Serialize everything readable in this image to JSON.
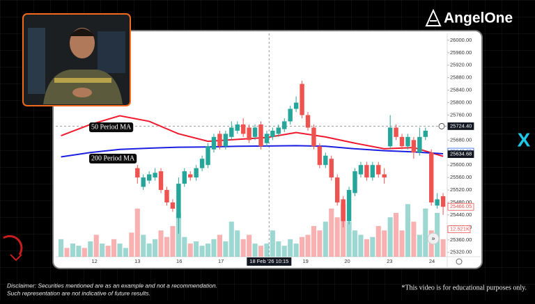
{
  "brand": "AngelOne",
  "side_mark": "X",
  "disclaimer": [
    "Disclaimer: Securities mentioned are as an example and not a recommendation.",
    "Such representation are not  indicative of future results."
  ],
  "footnote": "*This video is for educational purposes only.",
  "chart_data": {
    "type": "candlestick",
    "xlim": [
      -13.9,
      52.7
    ],
    "xticks": [
      {
        "value": -7.3,
        "label": "12"
      },
      {
        "value": 0,
        "label": "13"
      },
      {
        "value": 7.1,
        "label": "16"
      },
      {
        "value": 14.2,
        "label": "17"
      },
      {
        "value": 22.4,
        "label": "18 Feb '26   10:15"
      },
      {
        "value": 28.6,
        "label": "19"
      },
      {
        "value": 35.7,
        "label": "20"
      },
      {
        "value": 42.9,
        "label": "23"
      },
      {
        "value": 50.1,
        "label": "24"
      }
    ],
    "ylim": [
      25306,
      26022
    ],
    "yticks": [
      {
        "value": 25320,
        "label": "25320.00"
      },
      {
        "value": 25360,
        "label": "25360.00"
      },
      {
        "value": 25400,
        "label": "25400.00"
      },
      {
        "value": 25440,
        "label": "25440.00"
      },
      {
        "value": 25480,
        "label": "25480.00"
      },
      {
        "value": 25520,
        "label": "25520.00"
      },
      {
        "value": 25560,
        "label": "25560.00"
      },
      {
        "value": 25600,
        "label": "25600.00"
      },
      {
        "value": 25640,
        "label": "25640.00"
      },
      {
        "value": 25680,
        "label": "25680.00"
      },
      {
        "value": 25720,
        "label": "25720.00"
      },
      {
        "value": 25760,
        "label": "25760.00"
      },
      {
        "value": 25800,
        "label": "25800.00"
      },
      {
        "value": 25840,
        "label": "25840.00"
      },
      {
        "value": 25880,
        "label": "25880.00"
      },
      {
        "value": 25920,
        "label": "25920.00"
      },
      {
        "value": 25960,
        "label": "25960.00"
      },
      {
        "value": 26000,
        "label": "26000.00"
      }
    ],
    "up_color": "#26a69a",
    "down_color": "#ef5350",
    "candles": [
      {
        "open": 25590,
        "high": 25600,
        "low": 25540,
        "close": 25560
      },
      {
        "open": 25530,
        "high": 25570,
        "low": 25520,
        "close": 25560
      },
      {
        "open": 25550,
        "high": 25580,
        "low": 25540,
        "close": 25570
      },
      {
        "open": 25560,
        "high": 25590,
        "low": 25550,
        "close": 25575
      },
      {
        "open": 25580,
        "high": 25590,
        "low": 25510,
        "close": 25520
      },
      {
        "open": 25520,
        "high": 25530,
        "low": 25470,
        "close": 25480
      },
      {
        "open": 25480,
        "high": 25490,
        "low": 25450,
        "close": 25460
      },
      {
        "open": 25430,
        "high": 25560,
        "low": 25380,
        "close": 25540
      },
      {
        "open": 25540,
        "high": 25590,
        "low": 25530,
        "close": 25580
      },
      {
        "open": 25570,
        "high": 25580,
        "low": 25550,
        "close": 25560
      },
      {
        "open": 25560,
        "high": 25600,
        "low": 25550,
        "close": 25590
      },
      {
        "open": 25590,
        "high": 25630,
        "low": 25580,
        "close": 25620
      },
      {
        "open": 25600,
        "high": 25670,
        "low": 25590,
        "close": 25660
      },
      {
        "open": 25650,
        "high": 25700,
        "low": 25640,
        "close": 25690
      },
      {
        "open": 25700,
        "high": 25710,
        "low": 25650,
        "close": 25660
      },
      {
        "open": 25660,
        "high": 25710,
        "low": 25650,
        "close": 25700
      },
      {
        "open": 25690,
        "high": 25740,
        "low": 25680,
        "close": 25720
      },
      {
        "open": 25710,
        "high": 25740,
        "low": 25700,
        "close": 25730
      },
      {
        "open": 25730,
        "high": 25750,
        "low": 25690,
        "close": 25700
      },
      {
        "open": 25720,
        "high": 25730,
        "low": 25670,
        "close": 25680
      },
      {
        "open": 25690,
        "high": 25730,
        "low": 25680,
        "close": 25720
      },
      {
        "open": 25730,
        "high": 25740,
        "low": 25650,
        "close": 25660
      },
      {
        "open": 25670,
        "high": 25710,
        "low": 25660,
        "close": 25700
      },
      {
        "open": 25690,
        "high": 25720,
        "low": 25680,
        "close": 25710
      },
      {
        "open": 25700,
        "high": 25730,
        "low": 25690,
        "close": 25720
      },
      {
        "open": 25715,
        "high": 25750,
        "low": 25705,
        "close": 25740
      },
      {
        "open": 25740,
        "high": 25790,
        "low": 25730,
        "close": 25780
      },
      {
        "open": 25780,
        "high": 25820,
        "low": 25770,
        "close": 25800
      },
      {
        "open": 25860,
        "high": 25870,
        "low": 25750,
        "close": 25760
      },
      {
        "open": 25760,
        "high": 25770,
        "low": 25710,
        "close": 25720
      },
      {
        "open": 25720,
        "high": 25730,
        "low": 25650,
        "close": 25660
      },
      {
        "open": 25660,
        "high": 25670,
        "low": 25590,
        "close": 25600
      },
      {
        "open": 25600,
        "high": 25640,
        "low": 25590,
        "close": 25630
      },
      {
        "open": 25620,
        "high": 25630,
        "low": 25550,
        "close": 25560
      },
      {
        "open": 25560,
        "high": 25570,
        "low": 25470,
        "close": 25480
      },
      {
        "open": 25490,
        "high": 25500,
        "low": 25400,
        "close": 25420
      },
      {
        "open": 25420,
        "high": 25530,
        "low": 25410,
        "close": 25520
      },
      {
        "open": 25510,
        "high": 25590,
        "low": 25500,
        "close": 25580
      },
      {
        "open": 25570,
        "high": 25610,
        "low": 25560,
        "close": 25600
      },
      {
        "open": 25600,
        "high": 25610,
        "low": 25550,
        "close": 25560
      },
      {
        "open": 25560,
        "high": 25610,
        "low": 25550,
        "close": 25600
      },
      {
        "open": 25600,
        "high": 25610,
        "low": 25560,
        "close": 25570
      },
      {
        "open": 25570,
        "high": 25590,
        "low": 25540,
        "close": 25560
      },
      {
        "open": 25660,
        "high": 25760,
        "low": 25650,
        "close": 25720
      },
      {
        "open": 25720,
        "high": 25730,
        "low": 25680,
        "close": 25690
      },
      {
        "open": 25690,
        "high": 25700,
        "low": 25650,
        "close": 25660
      },
      {
        "open": 25660,
        "high": 25700,
        "low": 25650,
        "close": 25690
      },
      {
        "open": 25680,
        "high": 25690,
        "low": 25620,
        "close": 25640
      },
      {
        "open": 25640,
        "high": 25720,
        "low": 25630,
        "close": 25690
      },
      {
        "open": 25690,
        "high": 25720,
        "low": 25680,
        "close": 25710
      },
      {
        "open": 25640,
        "high": 25650,
        "low": 25470,
        "close": 25480
      },
      {
        "open": 25470,
        "high": 25510,
        "low": 25460,
        "close": 25490
      },
      {
        "open": 25500,
        "high": 25510,
        "low": 25440,
        "close": 25466.05
      }
    ],
    "volume": {
      "vlim": [
        0,
        27
      ],
      "x": [
        -13,
        -12,
        -11,
        -10,
        -9,
        -8,
        -7,
        -6,
        -5,
        -4,
        -3,
        -2,
        -1,
        0,
        1,
        2,
        3,
        4,
        5,
        6,
        7,
        8,
        9,
        10,
        11,
        12,
        13,
        14,
        15,
        16,
        17,
        18,
        19,
        20,
        21,
        22,
        23,
        24,
        25,
        26,
        27,
        28,
        29,
        30,
        31,
        32,
        33,
        34,
        35,
        36,
        37,
        38,
        39,
        40,
        41,
        42,
        43,
        44,
        45,
        46,
        47,
        48,
        49,
        50,
        51,
        52
      ],
      "values": [
        8,
        4,
        6,
        5,
        4,
        7,
        10,
        6,
        5,
        8,
        6,
        4,
        11,
        22,
        10,
        6,
        8,
        12,
        9,
        14,
        20,
        9,
        6,
        7,
        5,
        6,
        8,
        10,
        7,
        16,
        12,
        8,
        10,
        6,
        5,
        6,
        12,
        7,
        5,
        8,
        6,
        9,
        10,
        14,
        12,
        16,
        22,
        18,
        24,
        16,
        12,
        10,
        8,
        9,
        14,
        12,
        18,
        20,
        12,
        24,
        16,
        10,
        22,
        12,
        20,
        8
      ],
      "up": [
        true,
        false,
        true,
        true,
        false,
        true,
        false,
        true,
        false,
        false,
        true,
        true,
        false,
        false,
        true,
        true,
        true,
        false,
        false,
        false,
        true,
        true,
        false,
        true,
        true,
        true,
        true,
        false,
        true,
        true,
        true,
        false,
        false,
        true,
        false,
        true,
        true,
        true,
        true,
        true,
        true,
        false,
        false,
        false,
        false,
        true,
        false,
        false,
        false,
        true,
        true,
        true,
        false,
        true,
        false,
        false,
        true,
        false,
        false,
        true,
        false,
        true,
        true,
        false,
        true,
        false
      ]
    },
    "series": [
      {
        "name": "50 Period MA",
        "color": "#f0182c",
        "x": [
          -13,
          -8,
          -3,
          2,
          7,
          12,
          17,
          22,
          27,
          32,
          37,
          42,
          47,
          52
        ],
        "values": [
          25694,
          25730,
          25758,
          25740,
          25700,
          25676,
          25682,
          25688,
          25704,
          25690,
          25670,
          25652,
          25656,
          25628
        ]
      },
      {
        "name": "200 Period MA",
        "color": "#1a1ee0",
        "x": [
          -13,
          -8,
          -3,
          2,
          7,
          12,
          17,
          22,
          27,
          32,
          37,
          42,
          47,
          52
        ],
        "values": [
          25626,
          25640,
          25650,
          25654,
          25657,
          25658,
          25660,
          25661,
          25662,
          25660,
          25652,
          25646,
          25642,
          25636
        ]
      }
    ],
    "crosshair": {
      "y": 25724.4
    },
    "price_labels": [
      {
        "value": 25724.4,
        "label": "25724.40",
        "style": "dark"
      },
      {
        "value": 25642.63,
        "label": "25642.63",
        "style": "blue"
      },
      {
        "value": 25634.68,
        "label": "25634.68",
        "style": "dark"
      },
      {
        "value": 25466.05,
        "label": "25466.05",
        "style": "red"
      }
    ],
    "volume_label": {
      "value": 12.521,
      "label": "12.521K"
    }
  }
}
